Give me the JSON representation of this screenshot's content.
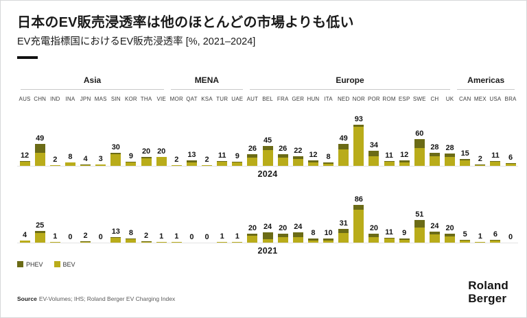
{
  "header": {
    "title": "日本のEV販売浸透率は他のほとんどの市場よりも低い",
    "subtitle": "EV充電指標国におけるEV販売浸透率 [%, 2021–2024]"
  },
  "colors": {
    "phev": "#6b6b16",
    "bev": "#b9ac1a"
  },
  "legend": [
    {
      "name": "PHEV",
      "color": "#6b6b16"
    },
    {
      "name": "BEV",
      "color": "#b9ac1a"
    }
  ],
  "source": {
    "label": "Source",
    "text": "EV-Volumes; IHS; Roland Berger EV Charging Index"
  },
  "logo": {
    "line1": "Roland",
    "line2": "Berger"
  },
  "chart_data": {
    "type": "bar",
    "stacked": true,
    "unit": "%",
    "value_labels": "total shown above each bar",
    "legend_position": "bottom-left",
    "max_value_scale": 93,
    "regions": [
      {
        "name": "Asia",
        "count": 10
      },
      {
        "name": "MENA",
        "count": 5
      },
      {
        "name": "Europe",
        "count": 14
      },
      {
        "name": "Americas",
        "count": 4
      }
    ],
    "categories": [
      "AUS",
      "CHN",
      "IND",
      "INA",
      "JPN",
      "MAS",
      "SIN",
      "KOR",
      "THA",
      "VIE",
      "MOR",
      "QAT",
      "KSA",
      "TUR",
      "UAE",
      "AUT",
      "BEL",
      "FRA",
      "GER",
      "HUN",
      "ITA",
      "NED",
      "NOR",
      "POR",
      "ROM",
      "ESP",
      "SWE",
      "CH",
      "UK",
      "CAN",
      "MEX",
      "USA",
      "BRA"
    ],
    "charts": [
      {
        "year_label": "2024",
        "totals": [
          12,
          49,
          2,
          8,
          4,
          3,
          30,
          9,
          20,
          20,
          2,
          13,
          2,
          11,
          9,
          26,
          45,
          26,
          22,
          12,
          8,
          49,
          93,
          34,
          11,
          12,
          60,
          28,
          28,
          15,
          2,
          11,
          6
        ],
        "series": [
          {
            "name": "PHEV",
            "values": [
              2,
              20,
              0,
              0,
              2,
              0,
              3,
              1,
              3,
              0,
              0,
              5,
              0,
              2,
              1,
              7,
              10,
              7,
              6,
              4,
              3,
              12,
              4,
              12,
              2,
              4,
              20,
              7,
              8,
              3,
              1,
              2,
              2
            ]
          },
          {
            "name": "BEV",
            "values": [
              10,
              29,
              2,
              8,
              2,
              3,
              27,
              8,
              17,
              20,
              2,
              8,
              2,
              9,
              8,
              19,
              35,
              19,
              16,
              8,
              5,
              37,
              89,
              22,
              9,
              8,
              40,
              21,
              20,
              12,
              1,
              9,
              4
            ]
          }
        ]
      },
      {
        "year_label": "2021",
        "totals": [
          4,
          25,
          1,
          0,
          2,
          0,
          13,
          8,
          2,
          1,
          1,
          0,
          0,
          1,
          1,
          20,
          24,
          20,
          24,
          8,
          10,
          31,
          86,
          20,
          11,
          9,
          51,
          24,
          20,
          5,
          1,
          6,
          0
        ],
        "series": [
          {
            "name": "PHEV",
            "values": [
              0,
              4,
              0,
              0,
              1,
              0,
              2,
              1,
              1,
              0,
              0,
              0,
              0,
              0,
              0,
              5,
              16,
              8,
              11,
              4,
              5,
              10,
              11,
              7,
              2,
              3,
              17,
              6,
              6,
              1,
              0,
              1,
              0
            ]
          },
          {
            "name": "BEV",
            "values": [
              4,
              21,
              1,
              0,
              1,
              0,
              11,
              7,
              1,
              1,
              1,
              0,
              0,
              1,
              1,
              15,
              8,
              12,
              13,
              4,
              5,
              21,
              75,
              13,
              9,
              6,
              34,
              18,
              14,
              4,
              1,
              5,
              0
            ]
          }
        ]
      }
    ]
  }
}
